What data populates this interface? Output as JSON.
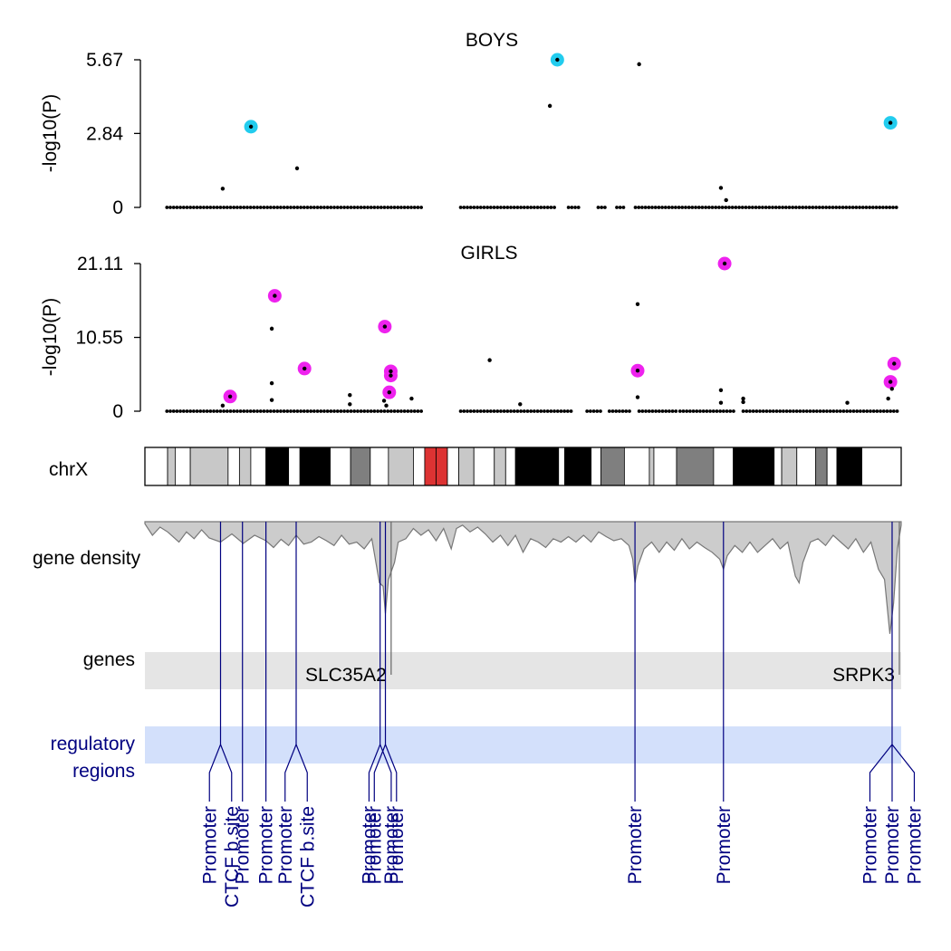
{
  "chart_data": [
    {
      "type": "scatter",
      "title": "BOYS",
      "ylabel": "-log10(P)",
      "yticks": [
        "0",
        "2.84",
        "5.67"
      ],
      "ylim": [
        0,
        5.67
      ],
      "x_unit": "relative position along chrX (0-1)",
      "highlight_color": "#22ccee",
      "points": [
        [
          0.09,
          0.72
        ],
        [
          0.19,
          1.5
        ],
        [
          0.53,
          3.9
        ],
        [
          0.65,
          5.5
        ],
        [
          0.76,
          0.75
        ],
        [
          0.767,
          0.28
        ]
      ],
      "highlighted": [
        [
          0.128,
          3.1
        ],
        [
          0.54,
          5.67
        ],
        [
          0.988,
          3.25
        ]
      ],
      "baseline_segments": [
        [
          0.015,
          0.36
        ],
        [
          0.41,
          0.54
        ],
        [
          0.555,
          0.57
        ],
        [
          0.595,
          0.605
        ],
        [
          0.62,
          0.63
        ],
        [
          0.645,
          1.0
        ]
      ]
    },
    {
      "type": "scatter",
      "title": "GIRLS",
      "ylabel": "-log10(P)",
      "yticks": [
        "0",
        "10.55",
        "21.11"
      ],
      "ylim": [
        0,
        21.11
      ],
      "x_unit": "relative position along chrX (0-1)",
      "highlight_color": "#ee22ee",
      "points": [
        [
          0.09,
          0.8
        ],
        [
          0.156,
          11.8
        ],
        [
          0.156,
          4.0
        ],
        [
          0.156,
          1.6
        ],
        [
          0.261,
          2.3
        ],
        [
          0.261,
          1.0
        ],
        [
          0.307,
          1.5
        ],
        [
          0.31,
          0.8
        ],
        [
          0.344,
          1.8
        ],
        [
          0.449,
          7.3
        ],
        [
          0.49,
          1.0
        ],
        [
          0.648,
          15.3
        ],
        [
          0.648,
          2.0
        ],
        [
          0.76,
          3.0
        ],
        [
          0.76,
          1.2
        ],
        [
          0.79,
          1.8
        ],
        [
          0.79,
          1.3
        ],
        [
          0.93,
          1.2
        ],
        [
          0.985,
          1.8
        ],
        [
          0.99,
          3.2
        ]
      ],
      "highlighted": [
        [
          0.1,
          2.1
        ],
        [
          0.16,
          16.5
        ],
        [
          0.2,
          6.1
        ],
        [
          0.308,
          12.1
        ],
        [
          0.316,
          5.7
        ],
        [
          0.316,
          5.1
        ],
        [
          0.314,
          2.7
        ],
        [
          0.765,
          21.11
        ],
        [
          0.648,
          5.8
        ],
        [
          0.993,
          6.8
        ],
        [
          0.988,
          4.2
        ]
      ],
      "baseline_segments": [
        [
          0.015,
          0.36
        ],
        [
          0.41,
          0.56
        ],
        [
          0.58,
          0.6
        ],
        [
          0.61,
          0.64
        ],
        [
          0.65,
          0.7
        ],
        [
          0.705,
          0.78
        ],
        [
          0.79,
          1.0
        ]
      ]
    }
  ],
  "chromosome": {
    "label": "chrX",
    "bands": [
      [
        "white",
        0.0,
        0.03
      ],
      [
        "lightgray",
        0.03,
        0.04
      ],
      [
        "white",
        0.04,
        0.06
      ],
      [
        "lightgray",
        0.06,
        0.11
      ],
      [
        "white",
        0.11,
        0.125
      ],
      [
        "lightgray",
        0.125,
        0.14
      ],
      [
        "white",
        0.14,
        0.16
      ],
      [
        "black",
        0.16,
        0.19
      ],
      [
        "white",
        0.19,
        0.205
      ],
      [
        "black",
        0.205,
        0.245
      ],
      [
        "white",
        0.245,
        0.272
      ],
      [
        "gray",
        0.272,
        0.298
      ],
      [
        "white",
        0.298,
        0.322
      ],
      [
        "lightgray",
        0.322,
        0.355
      ],
      [
        "white",
        0.355,
        0.37
      ],
      [
        "red",
        0.37,
        0.385
      ],
      [
        "red",
        0.385,
        0.4
      ],
      [
        "white",
        0.4,
        0.415
      ],
      [
        "lightgray",
        0.415,
        0.435
      ],
      [
        "white",
        0.435,
        0.462
      ],
      [
        "lightgray",
        0.462,
        0.477
      ],
      [
        "white",
        0.477,
        0.49
      ],
      [
        "black",
        0.49,
        0.547
      ],
      [
        "white",
        0.547,
        0.555
      ],
      [
        "black",
        0.555,
        0.59
      ],
      [
        "white",
        0.59,
        0.603
      ],
      [
        "gray",
        0.603,
        0.634
      ],
      [
        "white",
        0.634,
        0.667
      ],
      [
        "lightgray",
        0.667,
        0.673
      ],
      [
        "white",
        0.673,
        0.703
      ],
      [
        "gray",
        0.703,
        0.752
      ],
      [
        "white",
        0.752,
        0.778
      ],
      [
        "black",
        0.778,
        0.832
      ],
      [
        "white",
        0.832,
        0.842
      ],
      [
        "lightgray",
        0.842,
        0.862
      ],
      [
        "white",
        0.862,
        0.887
      ],
      [
        "gray",
        0.887,
        0.902
      ],
      [
        "white",
        0.902,
        0.915
      ],
      [
        "black",
        0.915,
        0.948
      ],
      [
        "white",
        0.948,
        1.0
      ]
    ],
    "band_colors": {
      "white": "#ffffff",
      "lightgray": "#c8c8c8",
      "gray": "#7f7f7f",
      "black": "#000000",
      "red": "#dd3333"
    }
  },
  "gene_density": {
    "label": "gene density",
    "fill_color": "#cccccc",
    "stroke_color": "#777777",
    "profile": [
      [
        0.0,
        0.03
      ],
      [
        0.01,
        0.2
      ],
      [
        0.02,
        0.08
      ],
      [
        0.03,
        0.15
      ],
      [
        0.045,
        0.3
      ],
      [
        0.055,
        0.15
      ],
      [
        0.065,
        0.25
      ],
      [
        0.075,
        0.12
      ],
      [
        0.085,
        0.24
      ],
      [
        0.1,
        0.3
      ],
      [
        0.115,
        0.18
      ],
      [
        0.13,
        0.32
      ],
      [
        0.145,
        0.2
      ],
      [
        0.16,
        0.28
      ],
      [
        0.17,
        0.38
      ],
      [
        0.18,
        0.26
      ],
      [
        0.19,
        0.35
      ],
      [
        0.2,
        0.2
      ],
      [
        0.21,
        0.33
      ],
      [
        0.22,
        0.3
      ],
      [
        0.23,
        0.22
      ],
      [
        0.24,
        0.28
      ],
      [
        0.25,
        0.35
      ],
      [
        0.26,
        0.2
      ],
      [
        0.27,
        0.33
      ],
      [
        0.28,
        0.3
      ],
      [
        0.29,
        0.4
      ],
      [
        0.3,
        0.25
      ],
      [
        0.31,
        0.9
      ],
      [
        0.315,
        0.95
      ],
      [
        0.318,
        1.35
      ],
      [
        0.322,
        0.85
      ],
      [
        0.33,
        0.6
      ],
      [
        0.335,
        0.3
      ],
      [
        0.345,
        0.25
      ],
      [
        0.355,
        0.1
      ],
      [
        0.365,
        0.2
      ],
      [
        0.375,
        0.12
      ],
      [
        0.385,
        0.28
      ],
      [
        0.395,
        0.1
      ],
      [
        0.405,
        0.4
      ],
      [
        0.412,
        0.1
      ],
      [
        0.42,
        0.05
      ],
      [
        0.43,
        0.15
      ],
      [
        0.44,
        0.08
      ],
      [
        0.45,
        0.18
      ],
      [
        0.46,
        0.3
      ],
      [
        0.47,
        0.2
      ],
      [
        0.48,
        0.35
      ],
      [
        0.49,
        0.2
      ],
      [
        0.5,
        0.45
      ],
      [
        0.51,
        0.25
      ],
      [
        0.52,
        0.3
      ],
      [
        0.53,
        0.38
      ],
      [
        0.54,
        0.25
      ],
      [
        0.55,
        0.3
      ],
      [
        0.56,
        0.22
      ],
      [
        0.57,
        0.3
      ],
      [
        0.58,
        0.2
      ],
      [
        0.59,
        0.3
      ],
      [
        0.6,
        0.15
      ],
      [
        0.61,
        0.22
      ],
      [
        0.62,
        0.28
      ],
      [
        0.63,
        0.25
      ],
      [
        0.64,
        0.35
      ],
      [
        0.645,
        0.55
      ],
      [
        0.648,
        0.9
      ],
      [
        0.652,
        0.65
      ],
      [
        0.66,
        0.4
      ],
      [
        0.67,
        0.3
      ],
      [
        0.68,
        0.45
      ],
      [
        0.69,
        0.3
      ],
      [
        0.7,
        0.42
      ],
      [
        0.71,
        0.25
      ],
      [
        0.72,
        0.4
      ],
      [
        0.73,
        0.3
      ],
      [
        0.74,
        0.38
      ],
      [
        0.75,
        0.45
      ],
      [
        0.76,
        0.55
      ],
      [
        0.765,
        0.7
      ],
      [
        0.77,
        0.5
      ],
      [
        0.78,
        0.35
      ],
      [
        0.79,
        0.45
      ],
      [
        0.8,
        0.3
      ],
      [
        0.81,
        0.45
      ],
      [
        0.82,
        0.35
      ],
      [
        0.83,
        0.25
      ],
      [
        0.84,
        0.4
      ],
      [
        0.85,
        0.3
      ],
      [
        0.86,
        0.8
      ],
      [
        0.865,
        0.9
      ],
      [
        0.87,
        0.6
      ],
      [
        0.88,
        0.3
      ],
      [
        0.89,
        0.25
      ],
      [
        0.9,
        0.35
      ],
      [
        0.91,
        0.2
      ],
      [
        0.92,
        0.3
      ],
      [
        0.93,
        0.4
      ],
      [
        0.94,
        0.25
      ],
      [
        0.95,
        0.45
      ],
      [
        0.96,
        0.3
      ],
      [
        0.97,
        0.7
      ],
      [
        0.978,
        0.85
      ],
      [
        0.985,
        1.65
      ],
      [
        0.99,
        1.2
      ],
      [
        0.995,
        0.4
      ],
      [
        1.0,
        0.05
      ]
    ]
  },
  "genes_track": {
    "label": "genes",
    "band_color": "#e5e5e5",
    "genes": [
      {
        "name": "SLC35A2",
        "pos": 0.316,
        "label_anchor": "end"
      },
      {
        "name": "SRPK3",
        "pos": 0.988,
        "label_anchor": "end"
      }
    ]
  },
  "regulatory_track": {
    "label_line1": "regulatory",
    "label_line2": "regions",
    "band_color": "#d3e0fb",
    "line_color": "#000080",
    "groups": [
      {
        "pos": 0.1,
        "labels": [
          "Promoter",
          "CTCF b.site"
        ]
      },
      {
        "pos": 0.129,
        "labels": [
          "Promoter"
        ]
      },
      {
        "pos": 0.16,
        "labels": [
          "Promoter"
        ]
      },
      {
        "pos": 0.2,
        "labels": [
          "Promoter",
          "CTCF b.site"
        ]
      },
      {
        "pos": 0.311,
        "labels": [
          "Promoter",
          "Promoter"
        ]
      },
      {
        "pos": 0.318,
        "labels": [
          "Promoter",
          "Promoter"
        ]
      },
      {
        "pos": 0.648,
        "labels": [
          "Promoter"
        ]
      },
      {
        "pos": 0.765,
        "labels": [
          "Promoter"
        ]
      },
      {
        "pos": 0.988,
        "labels": [
          "Promoter",
          "Promoter",
          "Promoter"
        ]
      }
    ]
  }
}
